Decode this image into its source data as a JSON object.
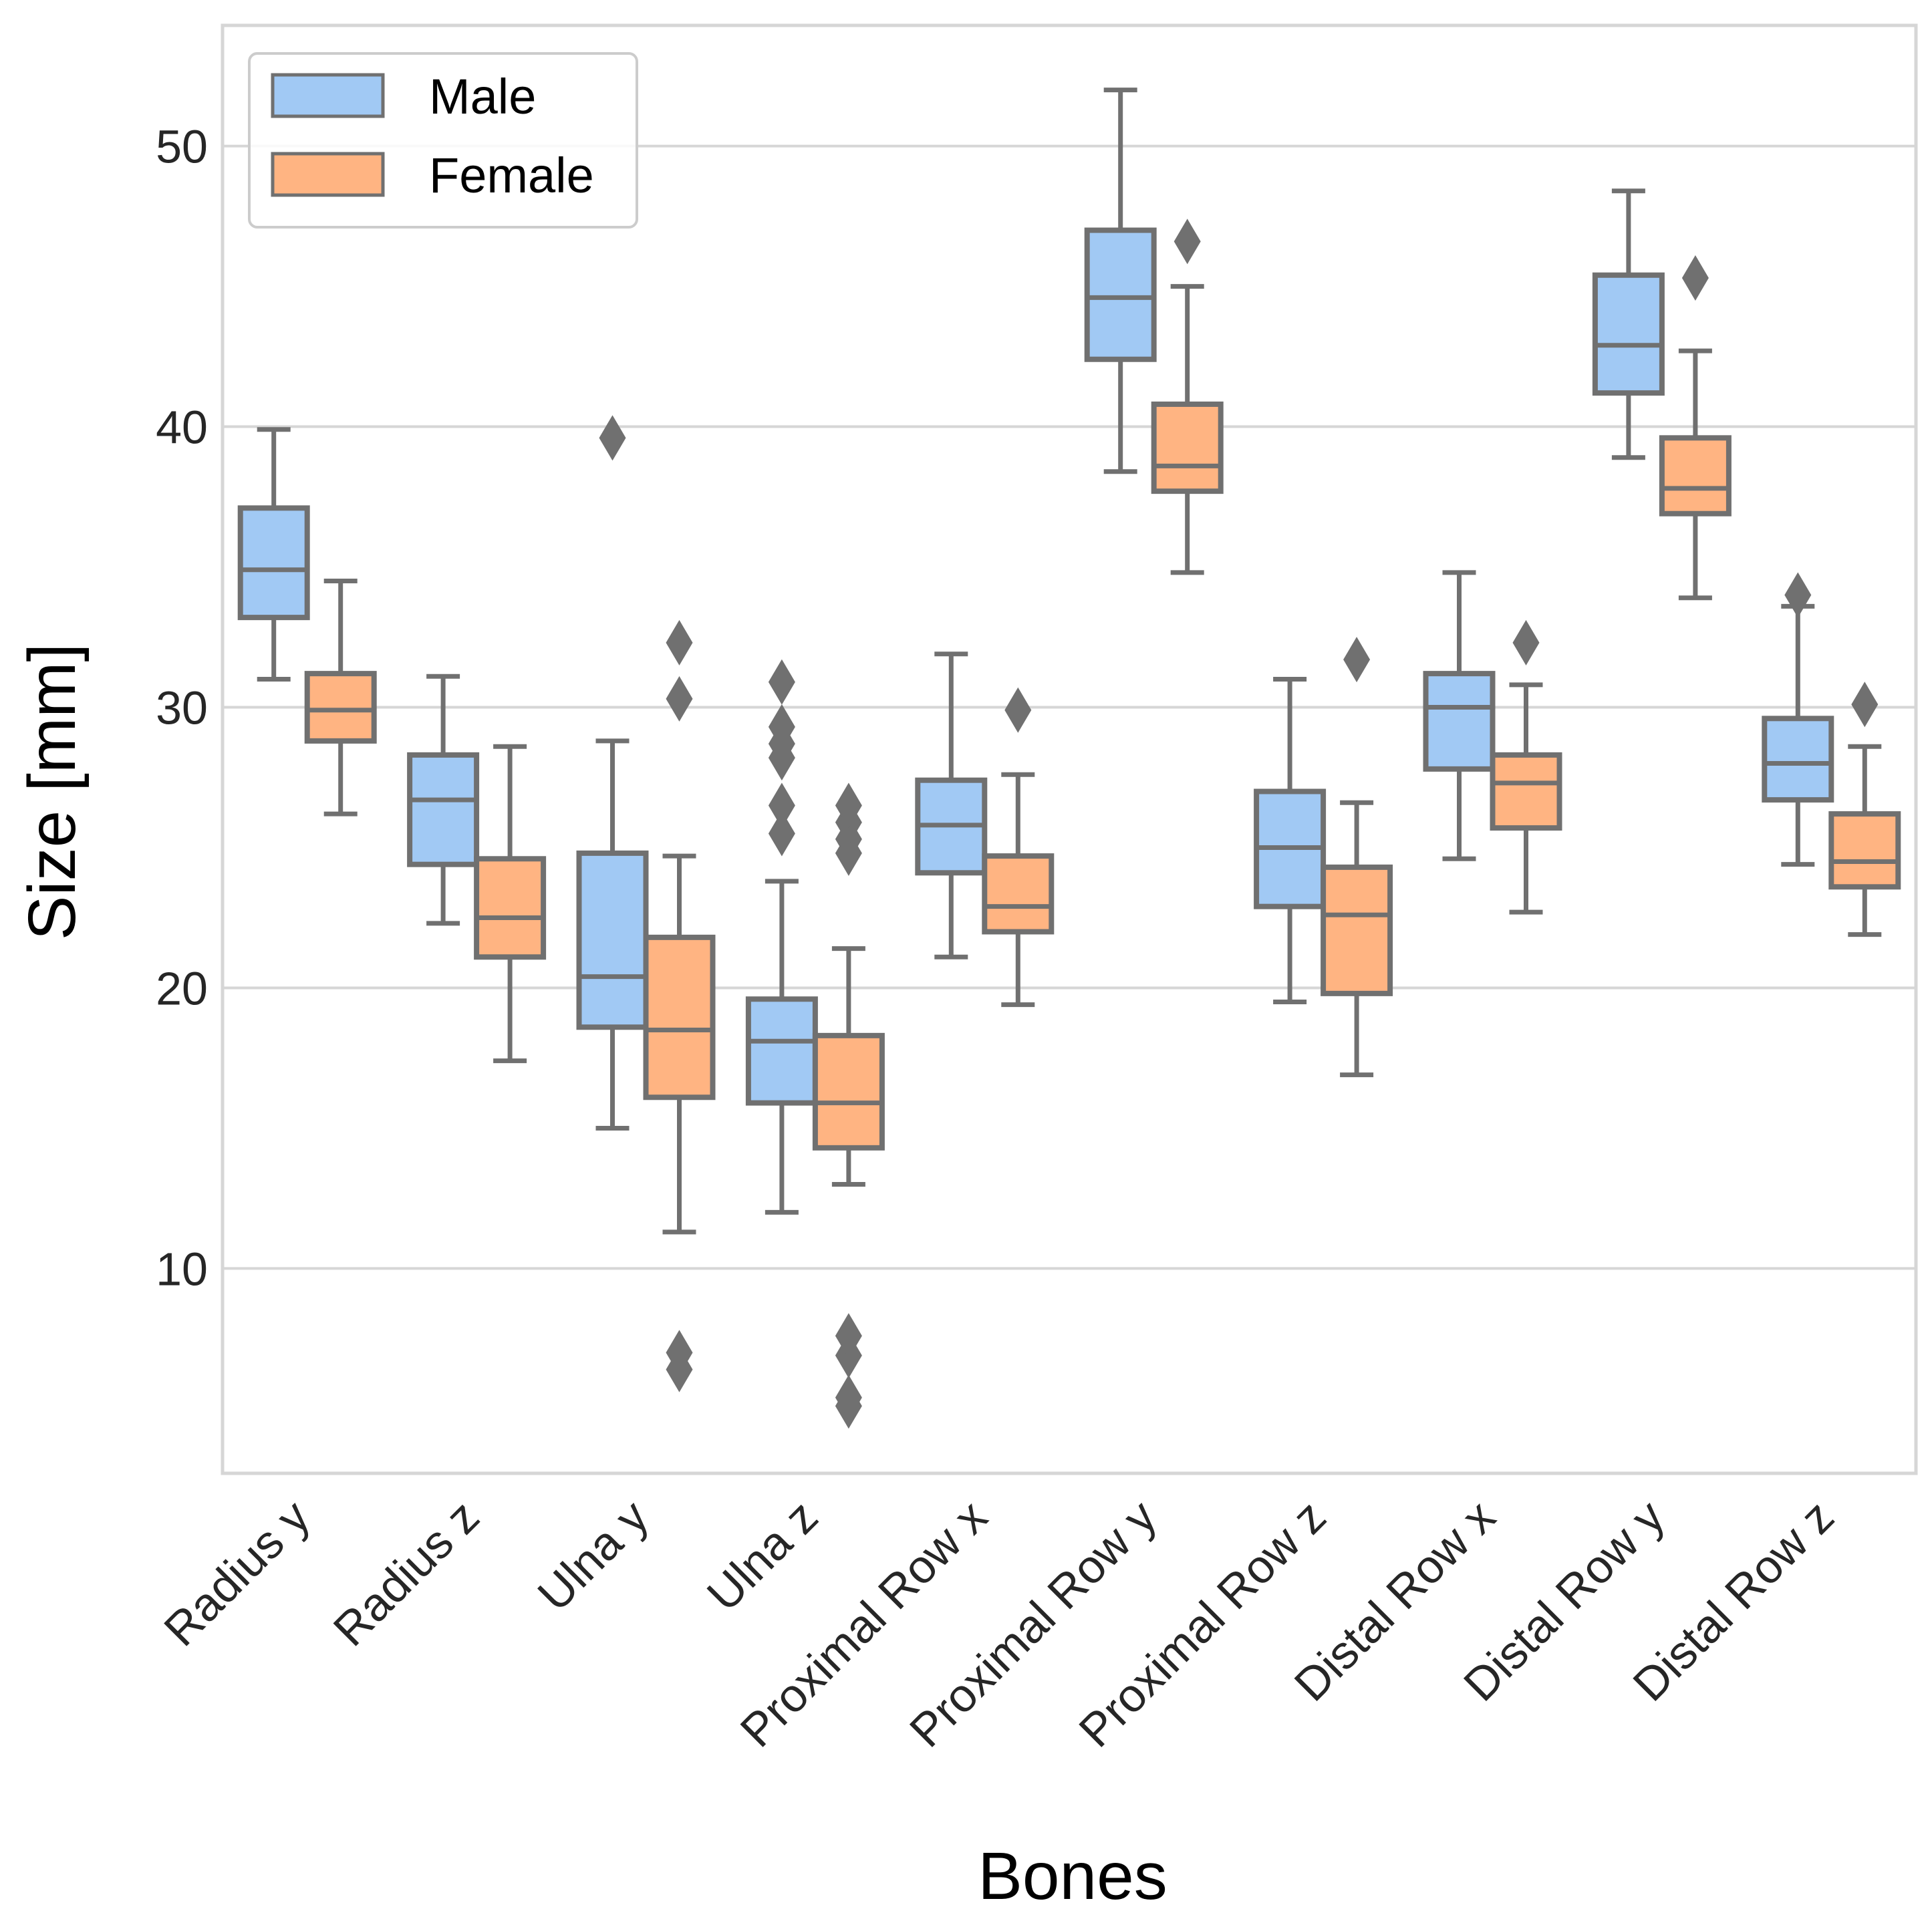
{
  "chart_data": {
    "type": "box",
    "title": "",
    "xlabel": "Bones",
    "ylabel": "Size [mm]",
    "ylim": [
      2.7,
      54.3
    ],
    "yticks": [
      10,
      20,
      30,
      40,
      50
    ],
    "grid": "y",
    "legend": {
      "position": "top-left",
      "entries": [
        "Male",
        "Female"
      ]
    },
    "colors": {
      "Male": "#a1c9f4",
      "Female": "#ffb482",
      "edge": "#707070",
      "grid": "#d6d6d6",
      "frame": "#d6d6d6"
    },
    "categories": [
      "Radius y",
      "Radius z",
      "Ulna y",
      "Ulna z",
      "Proximal Row x",
      "Proximal Row y",
      "Proximal Row z",
      "Distal Row x",
      "Distal Row y",
      "Distal Row z"
    ],
    "series": [
      {
        "name": "Male",
        "boxes": [
          {
            "whislo": 31.0,
            "q1": 33.2,
            "med": 34.9,
            "q3": 37.1,
            "whishi": 39.9,
            "fliers": []
          },
          {
            "whislo": 22.3,
            "q1": 24.4,
            "med": 26.7,
            "q3": 28.3,
            "whishi": 31.1,
            "fliers": []
          },
          {
            "whislo": 15.0,
            "q1": 18.6,
            "med": 20.4,
            "q3": 24.8,
            "whishi": 28.8,
            "fliers": [
              39.6
            ]
          },
          {
            "whislo": 12.0,
            "q1": 15.9,
            "med": 18.1,
            "q3": 19.6,
            "whishi": 23.8,
            "fliers": [
              25.5,
              26.5,
              28.2,
              28.7,
              29.3,
              30.9
            ]
          },
          {
            "whislo": 21.1,
            "q1": 24.1,
            "med": 25.8,
            "q3": 27.4,
            "whishi": 31.9,
            "fliers": []
          },
          {
            "whislo": 38.4,
            "q1": 42.4,
            "med": 44.6,
            "q3": 47.0,
            "whishi": 52.0,
            "fliers": []
          },
          {
            "whislo": 19.5,
            "q1": 22.9,
            "med": 25.0,
            "q3": 27.0,
            "whishi": 31.0,
            "fliers": []
          },
          {
            "whislo": 24.6,
            "q1": 27.8,
            "med": 30.0,
            "q3": 31.2,
            "whishi": 34.8,
            "fliers": []
          },
          {
            "whislo": 38.9,
            "q1": 41.2,
            "med": 42.9,
            "q3": 45.4,
            "whishi": 48.4,
            "fliers": []
          },
          {
            "whislo": 24.4,
            "q1": 26.7,
            "med": 28.0,
            "q3": 29.6,
            "whishi": 33.6,
            "fliers": [
              34.0
            ]
          }
        ]
      },
      {
        "name": "Female",
        "boxes": [
          {
            "whislo": 26.2,
            "q1": 28.8,
            "med": 29.9,
            "q3": 31.2,
            "whishi": 34.5,
            "fliers": []
          },
          {
            "whislo": 17.4,
            "q1": 21.1,
            "med": 22.5,
            "q3": 24.6,
            "whishi": 28.6,
            "fliers": []
          },
          {
            "whislo": 11.3,
            "q1": 16.1,
            "med": 18.5,
            "q3": 21.8,
            "whishi": 24.7,
            "fliers": [
              6.4,
              7.0,
              30.3,
              32.3
            ]
          },
          {
            "whislo": 13.0,
            "q1": 14.3,
            "med": 15.9,
            "q3": 18.3,
            "whishi": 21.4,
            "fliers": [
              5.1,
              5.4,
              6.9,
              7.6,
              24.8,
              25.3,
              25.9,
              26.5
            ]
          },
          {
            "whislo": 19.4,
            "q1": 22.0,
            "med": 22.9,
            "q3": 24.7,
            "whishi": 27.6,
            "fliers": [
              29.9
            ]
          },
          {
            "whislo": 34.8,
            "q1": 37.7,
            "med": 38.6,
            "q3": 40.8,
            "whishi": 45.0,
            "fliers": [
              46.6
            ]
          },
          {
            "whislo": 16.9,
            "q1": 19.8,
            "med": 22.6,
            "q3": 24.3,
            "whishi": 26.6,
            "fliers": [
              31.7
            ]
          },
          {
            "whislo": 22.7,
            "q1": 25.7,
            "med": 27.3,
            "q3": 28.3,
            "whishi": 30.8,
            "fliers": [
              32.3
            ]
          },
          {
            "whislo": 33.9,
            "q1": 36.9,
            "med": 37.8,
            "q3": 39.6,
            "whishi": 42.7,
            "fliers": [
              45.3
            ]
          },
          {
            "whislo": 21.9,
            "q1": 23.6,
            "med": 24.5,
            "q3": 26.2,
            "whishi": 28.6,
            "fliers": [
              30.1
            ]
          }
        ]
      }
    ]
  }
}
